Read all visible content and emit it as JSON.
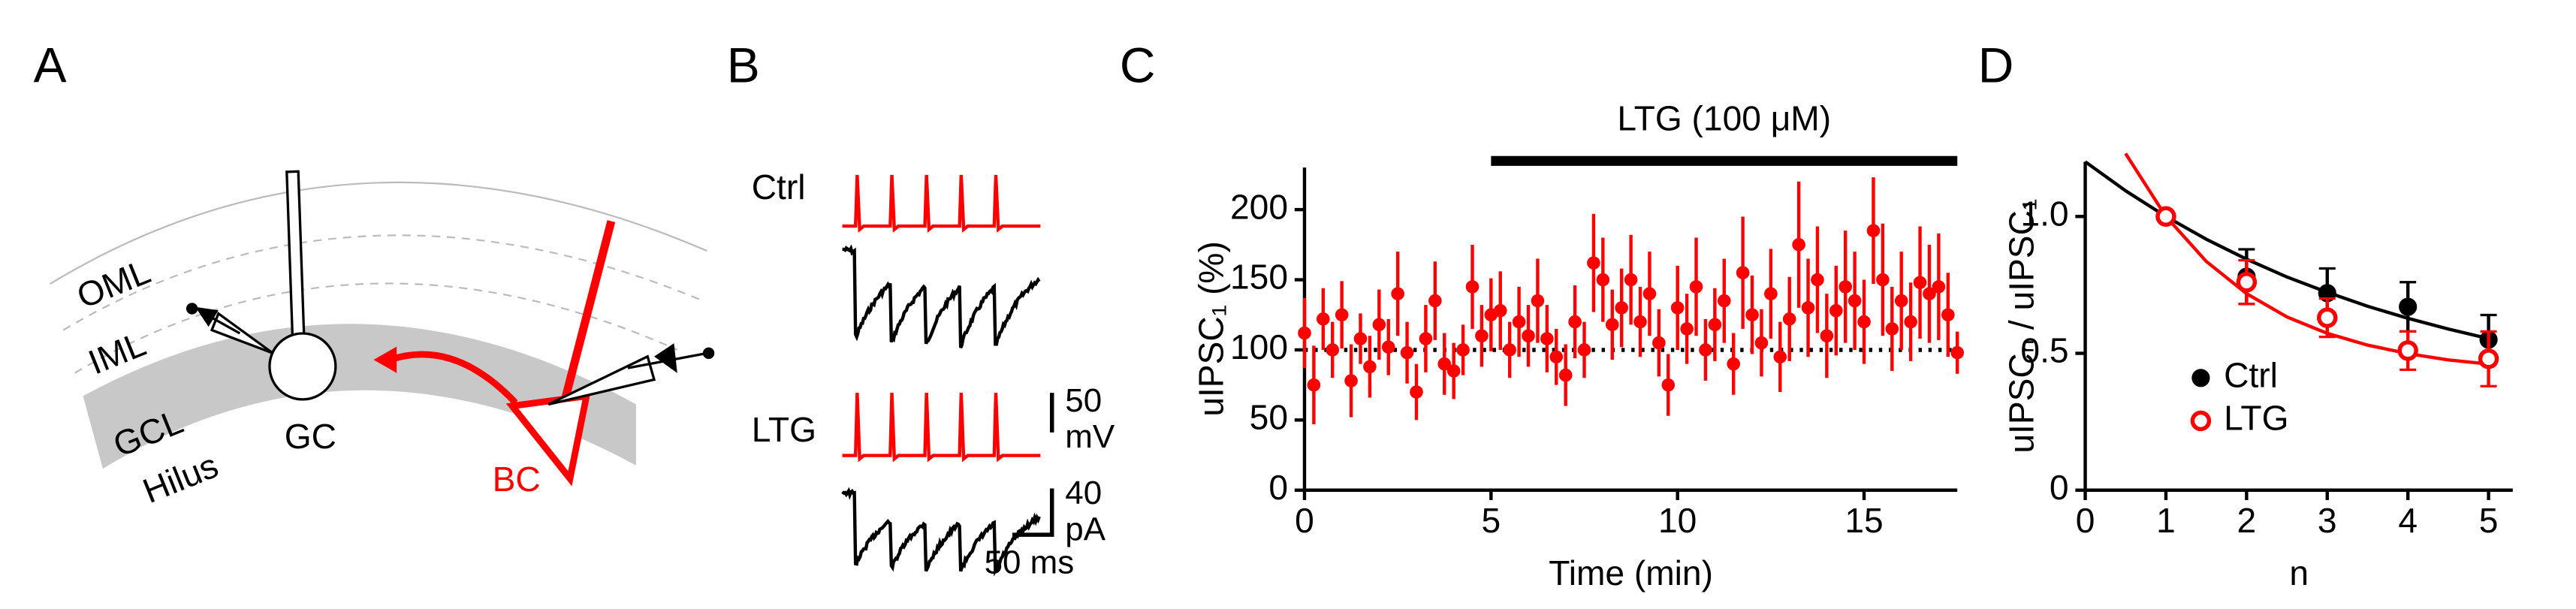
{
  "panel_a": {
    "letter": "A",
    "layers": [
      "OML",
      "IML",
      "GCL",
      "Hilus"
    ],
    "cells": [
      "GC",
      "BC"
    ]
  },
  "panel_b": {
    "letter": "B",
    "conditions": [
      "Ctrl",
      "LTG"
    ],
    "scale_mv": [
      "50",
      "mV"
    ],
    "scale_pa": [
      "40",
      "pA"
    ],
    "scale_ms": "50 ms"
  },
  "chart_data": [
    {
      "type": "scatter",
      "panel": "C",
      "x_label": "Time (min)",
      "y_label": "uIPSC₁ (%)",
      "annotation": {
        "text": "LTG (100 μM)",
        "span": [
          5,
          17.5
        ]
      },
      "reference_line": 100,
      "color": "#ff0000",
      "x": [
        0,
        0.25,
        0.5,
        0.75,
        1,
        1.25,
        1.5,
        1.75,
        2,
        2.25,
        2.5,
        2.75,
        3,
        3.25,
        3.5,
        3.75,
        4,
        4.25,
        4.5,
        4.75,
        5,
        5.25,
        5.5,
        5.75,
        6,
        6.25,
        6.5,
        6.75,
        7,
        7.25,
        7.5,
        7.75,
        8,
        8.25,
        8.5,
        8.75,
        9,
        9.25,
        9.5,
        9.75,
        10,
        10.25,
        10.5,
        10.75,
        11,
        11.25,
        11.5,
        11.75,
        12,
        12.25,
        12.5,
        12.75,
        13,
        13.25,
        13.5,
        13.75,
        14,
        14.25,
        14.5,
        14.75,
        15,
        15.25,
        15.5,
        15.75,
        16,
        16.25,
        16.5,
        16.75,
        17,
        17.25,
        17.5
      ],
      "values": [
        112,
        75,
        122,
        100,
        125,
        78,
        108,
        88,
        118,
        102,
        140,
        98,
        70,
        108,
        135,
        90,
        85,
        100,
        145,
        110,
        125,
        128,
        100,
        120,
        110,
        135,
        108,
        95,
        82,
        120,
        100,
        162,
        150,
        118,
        130,
        150,
        120,
        140,
        105,
        75,
        130,
        115,
        145,
        100,
        118,
        135,
        90,
        155,
        125,
        105,
        140,
        95,
        122,
        175,
        130,
        150,
        110,
        128,
        145,
        135,
        120,
        185,
        150,
        115,
        135,
        120,
        148,
        140,
        145,
        125,
        98
      ],
      "errors": [
        25,
        28,
        22,
        20,
        24,
        26,
        18,
        22,
        25,
        20,
        30,
        22,
        20,
        24,
        28,
        22,
        20,
        18,
        30,
        22,
        26,
        28,
        20,
        25,
        22,
        30,
        24,
        20,
        22,
        26,
        20,
        35,
        30,
        25,
        28,
        32,
        25,
        30,
        24,
        22,
        30,
        25,
        35,
        22,
        26,
        30,
        22,
        40,
        28,
        24,
        32,
        25,
        30,
        45,
        35,
        38,
        30,
        32,
        40,
        35,
        30,
        38,
        40,
        30,
        35,
        28,
        40,
        35,
        38,
        30,
        15
      ],
      "xlim": [
        0,
        17.5
      ],
      "ylim": [
        0,
        230
      ],
      "xticks": [
        0,
        5,
        10,
        15
      ],
      "yticks": [
        0,
        50,
        100,
        150,
        200
      ]
    },
    {
      "type": "scatter",
      "panel": "D",
      "x_label": "n",
      "y_label": "uIPSCₙ / uIPSC₁",
      "legend": "lower left",
      "x": [
        1,
        2,
        3,
        4,
        5
      ],
      "series": [
        {
          "name": "Ctrl",
          "color": "#000000",
          "marker": "filled",
          "values": [
            1,
            0.78,
            0.72,
            0.67,
            0.55
          ],
          "errors": [
            0,
            0.1,
            0.09,
            0.09,
            0.09
          ],
          "fit_x": [
            0,
            0.5,
            1,
            1.5,
            2,
            2.5,
            3,
            3.5,
            4,
            4.5,
            5
          ],
          "fit_values": [
            1.2,
            1.094,
            1.0,
            0.917,
            0.844,
            0.779,
            0.723,
            0.672,
            0.628,
            0.589,
            0.554
          ]
        },
        {
          "name": "LTG",
          "color": "#ff0000",
          "marker": "open",
          "values": [
            1,
            0.76,
            0.63,
            0.51,
            0.48
          ],
          "errors": [
            0,
            0.08,
            0.07,
            0.07,
            0.1
          ],
          "fit_x": [
            0.5,
            1,
            1.5,
            2,
            2.5,
            3,
            3.5,
            4,
            4.5,
            5
          ],
          "fit_values": [
            1.23,
            1.0,
            0.836,
            0.718,
            0.633,
            0.573,
            0.53,
            0.499,
            0.476,
            0.461
          ]
        }
      ],
      "xlim": [
        0,
        5.3
      ],
      "ylim": [
        0,
        1.2
      ],
      "xticks": [
        0,
        1,
        2,
        3,
        4,
        5
      ],
      "yticks": [
        0,
        0.5,
        {
          "value": 1,
          "label": "1.0"
        }
      ]
    }
  ]
}
